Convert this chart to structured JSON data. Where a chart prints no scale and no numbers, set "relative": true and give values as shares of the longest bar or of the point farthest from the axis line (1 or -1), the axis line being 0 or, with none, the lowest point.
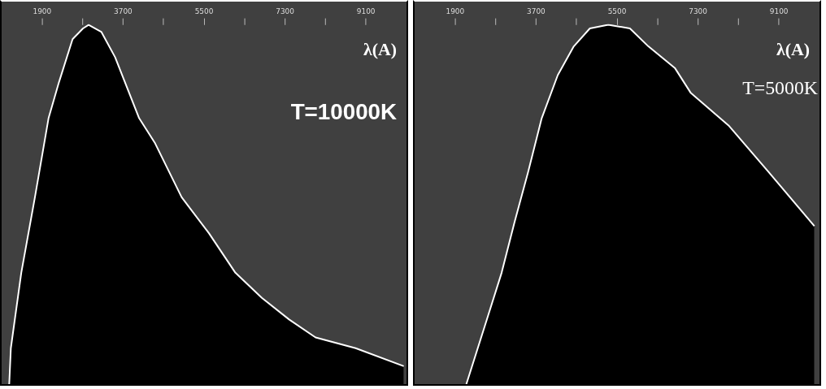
{
  "chart_data": [
    {
      "type": "area",
      "xlabel": "λ(A)",
      "annotations": [
        "T=10000K"
      ],
      "relative": true,
      "tick_labels": "x",
      "xlim": [
        1000,
        10000
      ],
      "xticks": [
        1900,
        {
          "value": 2800,
          "label": null
        },
        3700,
        {
          "value": 4600,
          "label": null
        },
        5500,
        {
          "value": 6400,
          "label": null
        },
        7300,
        {
          "value": 8200,
          "label": null
        },
        9100
      ],
      "x": [
        1169,
        1205,
        1437,
        1740,
        2043,
        2274,
        2577,
        2809,
        2934,
        3219,
        3522,
        4057,
        4413,
        5002,
        5608,
        6196,
        6784,
        7390,
        7978,
        8870,
        9939
      ],
      "series": [
        {
          "color": "#ffffff",
          "values": [
            0,
            0.1,
            0.31,
            0.52,
            0.74,
            0.84,
            0.96,
            0.99,
            1,
            0.98,
            0.91,
            0.74,
            0.67,
            0.52,
            0.42,
            0.31,
            0.24,
            0.18,
            0.13,
            0.1,
            0.05
          ]
        }
      ]
    },
    {
      "type": "area",
      "xlabel": "λ(A)",
      "annotations": [
        "T=5000K"
      ],
      "relative": true,
      "tick_labels": "x",
      "xlim": [
        1000,
        10000
      ],
      "xticks": [
        1900,
        {
          "value": 2800,
          "label": null
        },
        3700,
        {
          "value": 4600,
          "label": null
        },
        5500,
        {
          "value": 6400,
          "label": null
        },
        7300,
        {
          "value": 8200,
          "label": null
        },
        9100
      ],
      "x": [
        2150,
        2631,
        2934,
        3219,
        3522,
        3825,
        4182,
        4538,
        4895,
        5305,
        5786,
        6196,
        6784,
        7141,
        7978,
        8870,
        9886
      ],
      "series": [
        {
          "color": "#ffffff",
          "values": [
            0,
            0.19,
            0.31,
            0.45,
            0.59,
            0.74,
            0.86,
            0.94,
            0.99,
            1,
            0.99,
            0.94,
            0.88,
            0.81,
            0.72,
            0.59,
            0.44
          ]
        }
      ]
    }
  ]
}
